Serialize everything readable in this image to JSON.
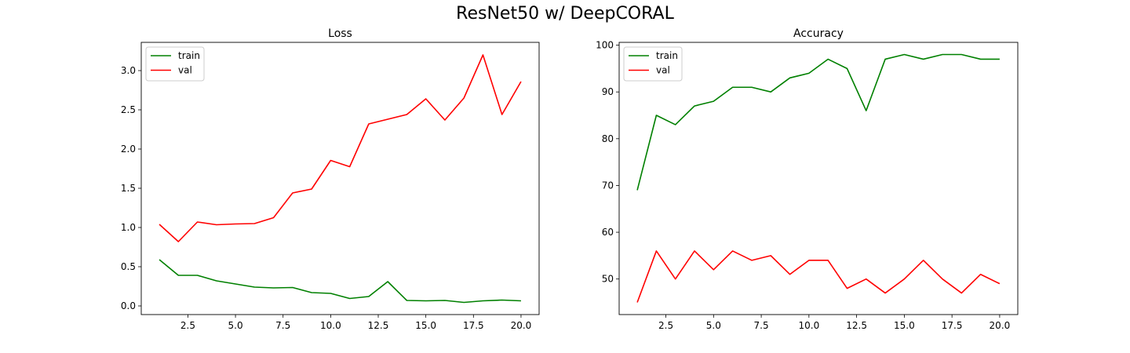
{
  "figure": {
    "title": "ResNet50 w/ DeepCORAL"
  },
  "chart_data": [
    {
      "type": "line",
      "title": "Loss",
      "xlabel": "",
      "ylabel": "",
      "x": [
        1,
        2,
        3,
        4,
        5,
        6,
        7,
        8,
        9,
        10,
        11,
        12,
        13,
        14,
        15,
        16,
        17,
        18,
        19,
        20
      ],
      "xlim": [
        0.05,
        20.95
      ],
      "ylim": [
        -0.11,
        3.36
      ],
      "xticks": [
        2.5,
        5.0,
        7.5,
        10.0,
        12.5,
        15.0,
        17.5,
        20.0
      ],
      "xtick_labels": [
        "2.5",
        "5.0",
        "7.5",
        "10.0",
        "12.5",
        "15.0",
        "17.5",
        "20.0"
      ],
      "yticks": [
        0.0,
        0.5,
        1.0,
        1.5,
        2.0,
        2.5,
        3.0
      ],
      "ytick_labels": [
        "0.0",
        "0.5",
        "1.0",
        "1.5",
        "2.0",
        "2.5",
        "3.0"
      ],
      "grid": false,
      "legend": "top-left",
      "series": [
        {
          "name": "train",
          "color": "#008000",
          "values": [
            0.59,
            0.39,
            0.39,
            0.32,
            0.28,
            0.24,
            0.23,
            0.235,
            0.17,
            0.16,
            0.095,
            0.12,
            0.31,
            0.07,
            0.065,
            0.07,
            0.045,
            0.065,
            0.075,
            0.065
          ]
        },
        {
          "name": "val",
          "color": "#ff0000",
          "values": [
            1.04,
            0.82,
            1.07,
            1.035,
            1.045,
            1.05,
            1.125,
            1.44,
            1.49,
            1.855,
            1.775,
            2.32,
            2.38,
            2.44,
            2.64,
            2.37,
            2.65,
            3.2,
            2.44,
            2.86
          ]
        }
      ]
    },
    {
      "type": "line",
      "title": "Accuracy",
      "xlabel": "",
      "ylabel": "",
      "x": [
        1,
        2,
        3,
        4,
        5,
        6,
        7,
        8,
        9,
        10,
        11,
        12,
        13,
        14,
        15,
        16,
        17,
        18,
        19,
        20
      ],
      "xlim": [
        0.05,
        20.95
      ],
      "ylim": [
        42.4,
        100.6
      ],
      "xticks": [
        2.5,
        5.0,
        7.5,
        10.0,
        12.5,
        15.0,
        17.5,
        20.0
      ],
      "xtick_labels": [
        "2.5",
        "5.0",
        "7.5",
        "10.0",
        "12.5",
        "15.0",
        "17.5",
        "20.0"
      ],
      "yticks": [
        50,
        60,
        70,
        80,
        90,
        100
      ],
      "ytick_labels": [
        "50",
        "60",
        "70",
        "80",
        "90",
        "100"
      ],
      "grid": false,
      "legend": "top-left",
      "series": [
        {
          "name": "train",
          "color": "#008000",
          "values": [
            69,
            85,
            83,
            87,
            88,
            91,
            91,
            90,
            93,
            94,
            97,
            95,
            86,
            97,
            98,
            97,
            98,
            98,
            97,
            97
          ]
        },
        {
          "name": "val",
          "color": "#ff0000",
          "values": [
            45,
            56,
            50,
            56,
            52,
            56,
            54,
            55,
            51,
            54,
            54,
            48,
            50,
            47,
            50,
            54,
            50,
            47,
            51,
            49
          ]
        }
      ]
    }
  ]
}
